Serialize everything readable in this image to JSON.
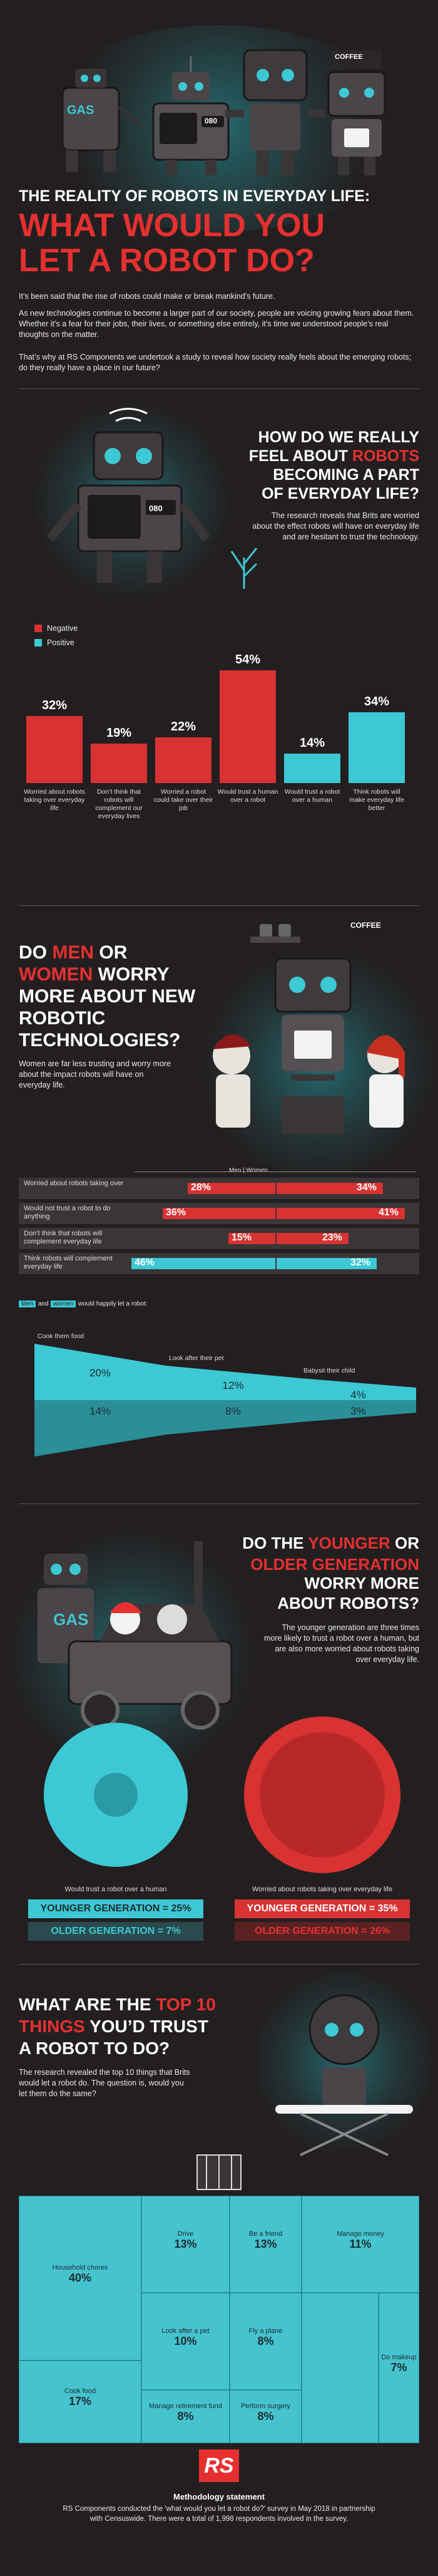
{
  "header": {
    "robot_labels": {
      "gas": "GAS",
      "oven": "080",
      "coffee": "COFFEE"
    },
    "title_line1": "THE REALITY OF ROBOTS IN EVERYDAY LIFE:",
    "title_line2": "WHAT WOULD YOU",
    "title_line3": "LET A ROBOT DO?",
    "intro_1": "It’s been said that the rise of robots could make or break mankind’s future.",
    "intro_2": "As new technologies continue to become a larger part of our society, people are voicing growing fears about them. Whether it’s a fear for their jobs, their lives, or something else entirely, it’s time we understood people’s real thoughts on the matter.",
    "intro_3": "That’s why at RS Components we undertook a study to reveal how society really feels about the emerging robots; do they really have a place in our future?"
  },
  "feel": {
    "robot_label": "080",
    "heading_a": "HOW DO WE REALLY",
    "heading_b": "FEEL ABOUT",
    "heading_b_red": "ROBOTS",
    "heading_c": "BECOMING A PART",
    "heading_d": "OF EVERYDAY LIFE?",
    "body": "The research reveals that Brits are worried about the effect robots will have on everyday life and are hesitant to trust the technology.",
    "legend_negative": "Negative",
    "legend_positive": "Positive"
  },
  "chart_data": {
    "type": "bar",
    "categories": [
      "Worried about robots taking over everyday life",
      "Don’t think that robots will complement our everyday lives",
      "Worried a robot could take over their job",
      "Would trust a human over a robot",
      "Would trust a robot over a human",
      "Think robots will make everyday life better"
    ],
    "values": [
      32,
      19,
      22,
      54,
      14,
      34
    ],
    "labels": [
      "32%",
      "19%",
      "22%",
      "54%",
      "14%",
      "34%"
    ],
    "sentiment": [
      "Negative",
      "Negative",
      "Negative",
      "Negative",
      "Positive",
      "Positive"
    ],
    "ylim": [
      0,
      60
    ]
  },
  "gender": {
    "heading_1a": "DO",
    "heading_1b": "MEN",
    "heading_1c": "OR",
    "heading_2a": "WOMEN",
    "heading_2b": "WORRY",
    "heading_3": "MORE ABOUT NEW",
    "heading_4": "ROBOTIC",
    "heading_5": "TECHNOLOGIES?",
    "body": "Women are far less trusting and worry more about the impact robots will have on everyday life.",
    "coffee_label": "COFFEE",
    "scale_header": "Men | Women",
    "rows": [
      {
        "label": "Worried about robots taking over",
        "men": 28,
        "women": 34,
        "men_label": "28%",
        "women_label": "34%",
        "color": "#d83232"
      },
      {
        "label": "Would not trust a robot to do anything",
        "men": 36,
        "women": 41,
        "men_label": "36%",
        "women_label": "41%",
        "color": "#d83232"
      },
      {
        "label": "Don’t think that robots will complement everyday life",
        "men": 15,
        "women": 23,
        "men_label": "15%",
        "women_label": "23%",
        "color": "#d83232"
      },
      {
        "label": "Think robots will complement everyday life",
        "men": 46,
        "women": 32,
        "men_label": "46%",
        "women_label": "32%",
        "color": "#3cc8d4"
      }
    ],
    "funnel_intro_men": "Men",
    "funnel_intro_and": "and",
    "funnel_intro_women": "women",
    "funnel_intro_rest": "would happily let a robot:",
    "funnel": [
      {
        "label": "Cook them food",
        "men": "20%",
        "women": "14%"
      },
      {
        "label": "Look after their pet",
        "men": "12%",
        "women": "8%"
      },
      {
        "label": "Babysit their child",
        "men": "4%",
        "women": "3%"
      }
    ]
  },
  "generation": {
    "car_label": "GAS",
    "heading_1a": "DO THE",
    "heading_1b": "YOUNGER",
    "heading_1c": "OR",
    "heading_2a": "OLDER GENERATION",
    "heading_3": "WORRY MORE",
    "heading_4": "ABOUT ROBOTS?",
    "body": "The younger generation are three times more likely to trust a robot over a human, but are also more worried about robots taking over everyday life.",
    "left_caption": "Would trust a robot over a human",
    "right_caption": "Worried about robots taking over everyday life",
    "left_young": "YOUNGER GENERATION = 25%",
    "left_old": "OLDER GENERATION = 7%",
    "right_young": "YOUNGER GENERATION = 35%",
    "right_old": "OLDER GENERATION = 26%"
  },
  "top10": {
    "heading_1": "WHAT ARE THE",
    "heading_1_red": "TOP 10",
    "heading_2_red": "THINGS",
    "heading_2": "YOU’D TRUST",
    "heading_3": "A ROBOT TO DO?",
    "body": "The research revealed the top 10 things that Brits would let a robot do. The question is, would you let them do the same?",
    "tiles": [
      {
        "label": "Household chores",
        "value": "40%"
      },
      {
        "label": "Cook food",
        "value": "17%"
      },
      {
        "label": "Drive",
        "value": "13%"
      },
      {
        "label": "Be a friend",
        "value": "13%"
      },
      {
        "label": "Manage money",
        "value": "11%"
      },
      {
        "label": "Look after a pet",
        "value": "10%"
      },
      {
        "label": "Fly a plane",
        "value": "8%"
      },
      {
        "label": "Do makeup",
        "value": "7%"
      },
      {
        "label": "Manage retirement fund",
        "value": "8%"
      },
      {
        "label": "Perform surgery",
        "value": "8%"
      }
    ]
  },
  "footer": {
    "logo": "RS",
    "statement_title": "Methodology statement",
    "statement": "RS Components conducted the 'what would you let a robot do?' survey in May 2018 in partnership with Censuswide. There were a total of 1,998 respondents involved in the survey."
  }
}
